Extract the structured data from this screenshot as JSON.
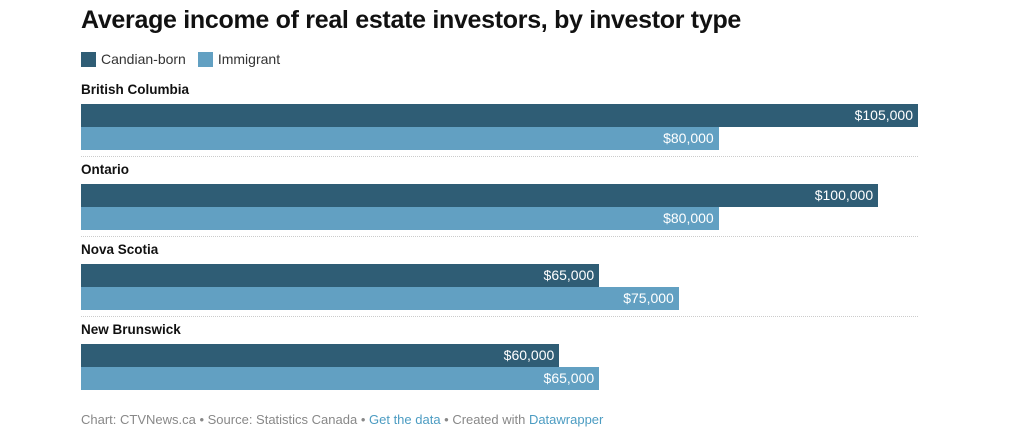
{
  "chart_data": {
    "type": "bar",
    "orientation": "horizontal",
    "title": "Average income of real estate investors, by investor type",
    "categories": [
      "British Columbia",
      "Ontario",
      "Nova Scotia",
      "New Brunswick"
    ],
    "series": [
      {
        "name": "Candian-born",
        "color": "#2f5d75",
        "values": [
          105000,
          100000,
          65000,
          60000
        ],
        "labels": [
          "$105,000",
          "$100,000",
          "$65,000",
          "$60,000"
        ]
      },
      {
        "name": "Immigrant",
        "color": "#62a0c2",
        "values": [
          80000,
          80000,
          75000,
          65000
        ],
        "labels": [
          "$80,000",
          "$80,000",
          "$75,000",
          "$65,000"
        ]
      }
    ],
    "xlim": [
      0,
      105000
    ],
    "legend": "top-left",
    "grid": false
  },
  "footer": {
    "prefix": "Chart: CTVNews.ca • Source: Statistics Canada • ",
    "get_data": "Get the data",
    "middle": " • Created with ",
    "datawrapper": "Datawrapper"
  }
}
